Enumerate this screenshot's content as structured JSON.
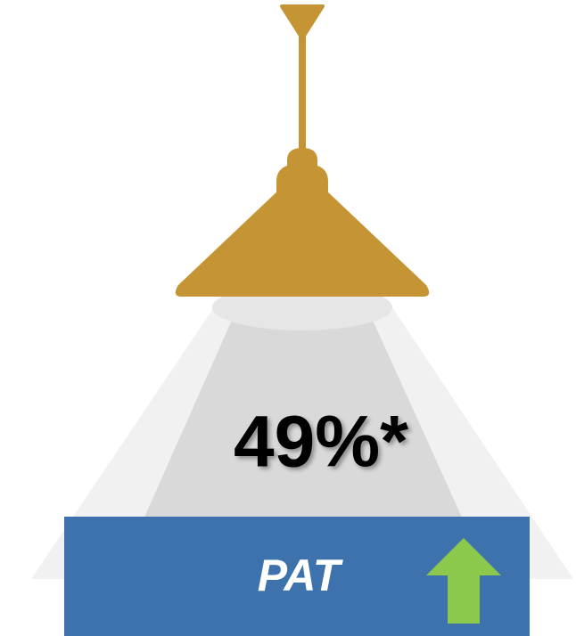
{
  "value_text": "49%*",
  "label": "PAT"
}
